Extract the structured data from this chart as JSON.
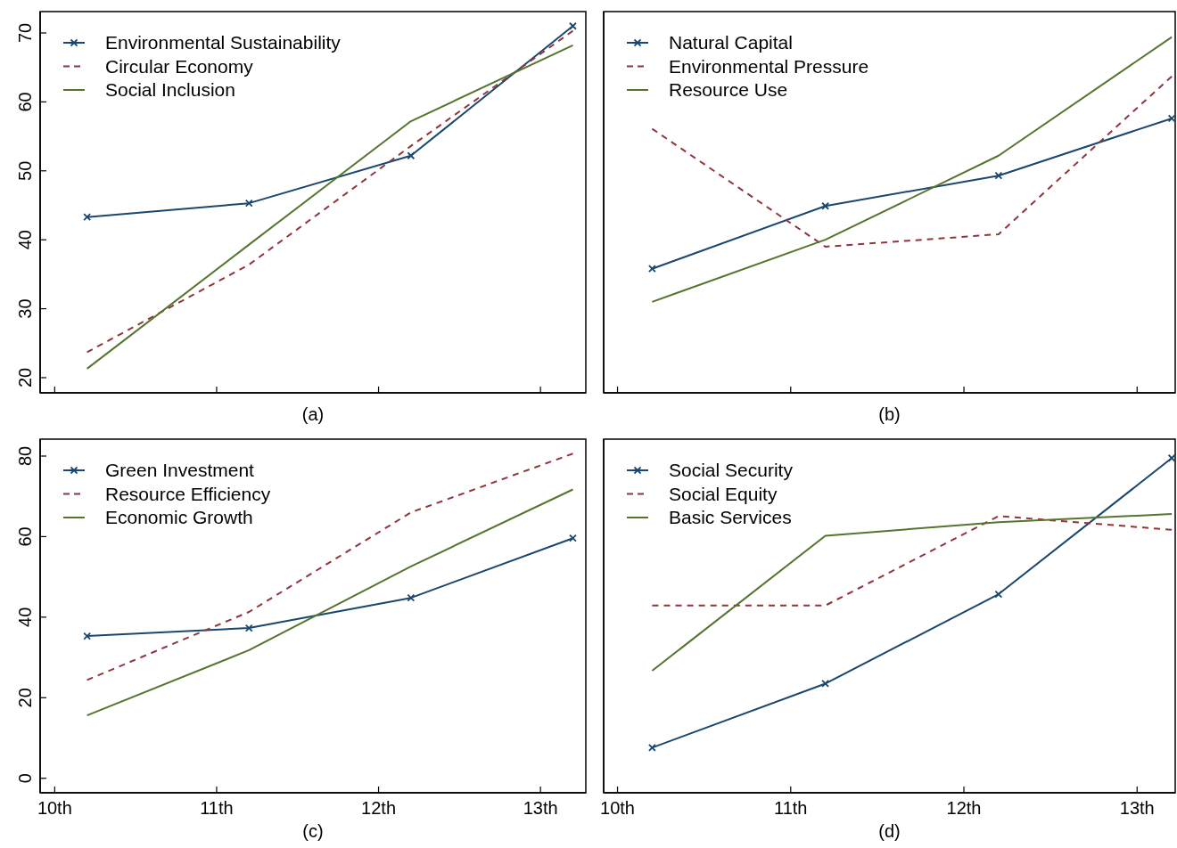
{
  "chart_data": [
    {
      "type": "line",
      "xlabel": "(a)",
      "x": [
        10.2,
        11.2,
        12.2,
        13.2
      ],
      "xlim": [
        9.91,
        13.28
      ],
      "xticks": [
        {
          "value": 10,
          "label": null
        },
        {
          "value": 11,
          "label": null
        },
        {
          "value": 12,
          "label": null
        },
        {
          "value": 13,
          "label": null
        }
      ],
      "ylim": [
        17.8,
        73.1
      ],
      "yticks": [
        20,
        30,
        40,
        50,
        60,
        70
      ],
      "tick_labels": "y",
      "legend": "top left",
      "grid": false,
      "series": [
        {
          "name": "Environmental Sustainability",
          "color": "#1a476f",
          "marker": "cross",
          "line_style": "solid",
          "values": [
            43.3,
            45.3,
            52.2,
            71.0
          ]
        },
        {
          "name": "Circular Economy",
          "color": "#90353b",
          "marker": "none",
          "line_style": "dashed",
          "values": [
            23.7,
            36.4,
            53.6,
            70.3
          ]
        },
        {
          "name": "Social Inclusion",
          "color": "#55752f",
          "marker": "none",
          "line_style": "solid",
          "values": [
            21.3,
            39.3,
            57.2,
            68.2
          ]
        }
      ]
    },
    {
      "type": "line",
      "xlabel": "(b)",
      "x": [
        10.2,
        11.2,
        12.2,
        13.2
      ],
      "xlim": [
        9.92,
        13.22
      ],
      "xticks": [
        {
          "value": 10,
          "label": null
        },
        {
          "value": 11,
          "label": null
        },
        {
          "value": 12,
          "label": null
        },
        {
          "value": 13,
          "label": null
        }
      ],
      "ylim": [
        17.8,
        73.1
      ],
      "yticks": [
        20,
        30,
        40,
        50,
        60,
        70
      ],
      "tick_labels": false,
      "legend": "top left",
      "grid": false,
      "series": [
        {
          "name": "Natural Capital",
          "color": "#1a476f",
          "marker": "cross",
          "line_style": "solid",
          "values": [
            35.8,
            44.9,
            49.3,
            57.6
          ]
        },
        {
          "name": "Environmental Pressure",
          "color": "#90353b",
          "marker": "none",
          "line_style": "dashed",
          "values": [
            56.1,
            39.0,
            40.8,
            63.7
          ]
        },
        {
          "name": "Resource Use",
          "color": "#55752f",
          "marker": "none",
          "line_style": "solid",
          "values": [
            31.0,
            40.0,
            52.2,
            69.4
          ]
        }
      ]
    },
    {
      "type": "line",
      "xlabel": "(c)",
      "x": [
        10.2,
        11.2,
        12.2,
        13.2
      ],
      "xlim": [
        9.91,
        13.28
      ],
      "xticks": [
        {
          "value": 10,
          "label": "10th"
        },
        {
          "value": 11,
          "label": "11th"
        },
        {
          "value": 12,
          "label": "12th"
        },
        {
          "value": 13,
          "label": "13th"
        }
      ],
      "ylim": [
        -3.6,
        84.2
      ],
      "yticks": [
        0,
        20,
        40,
        60,
        80
      ],
      "legend": "top left",
      "grid": false,
      "series": [
        {
          "name": "Green Investment",
          "color": "#1a476f",
          "marker": "cross",
          "line_style": "solid",
          "values": [
            35.3,
            37.3,
            44.8,
            59.6
          ]
        },
        {
          "name": "Resource Efficiency",
          "color": "#90353b",
          "marker": "none",
          "line_style": "dashed",
          "values": [
            24.4,
            41.3,
            66.0,
            80.6
          ]
        },
        {
          "name": "Economic Growth",
          "color": "#55752f",
          "marker": "none",
          "line_style": "solid",
          "values": [
            15.6,
            31.8,
            52.6,
            71.7
          ]
        }
      ]
    },
    {
      "type": "line",
      "xlabel": "(d)",
      "x": [
        10.2,
        11.2,
        12.2,
        13.2
      ],
      "xlim": [
        9.92,
        13.22
      ],
      "xticks": [
        {
          "value": 10,
          "label": "10th"
        },
        {
          "value": 11,
          "label": "11th"
        },
        {
          "value": 12,
          "label": "12th"
        },
        {
          "value": 13,
          "label": "13th"
        }
      ],
      "ylim": [
        -3.6,
        84.2
      ],
      "yticks": [
        0,
        20,
        40,
        60,
        80
      ],
      "tick_labels": "x",
      "legend": "top left",
      "grid": false,
      "series": [
        {
          "name": "Social Security",
          "color": "#1a476f",
          "marker": "cross",
          "line_style": "solid",
          "values": [
            7.6,
            23.5,
            45.7,
            79.5
          ]
        },
        {
          "name": "Social Equity",
          "color": "#90353b",
          "marker": "none",
          "line_style": "dashed",
          "values": [
            42.9,
            42.9,
            65.1,
            61.7
          ]
        },
        {
          "name": "Basic Services",
          "color": "#55752f",
          "marker": "none",
          "line_style": "solid",
          "values": [
            26.7,
            60.2,
            63.6,
            65.6
          ]
        }
      ]
    }
  ]
}
